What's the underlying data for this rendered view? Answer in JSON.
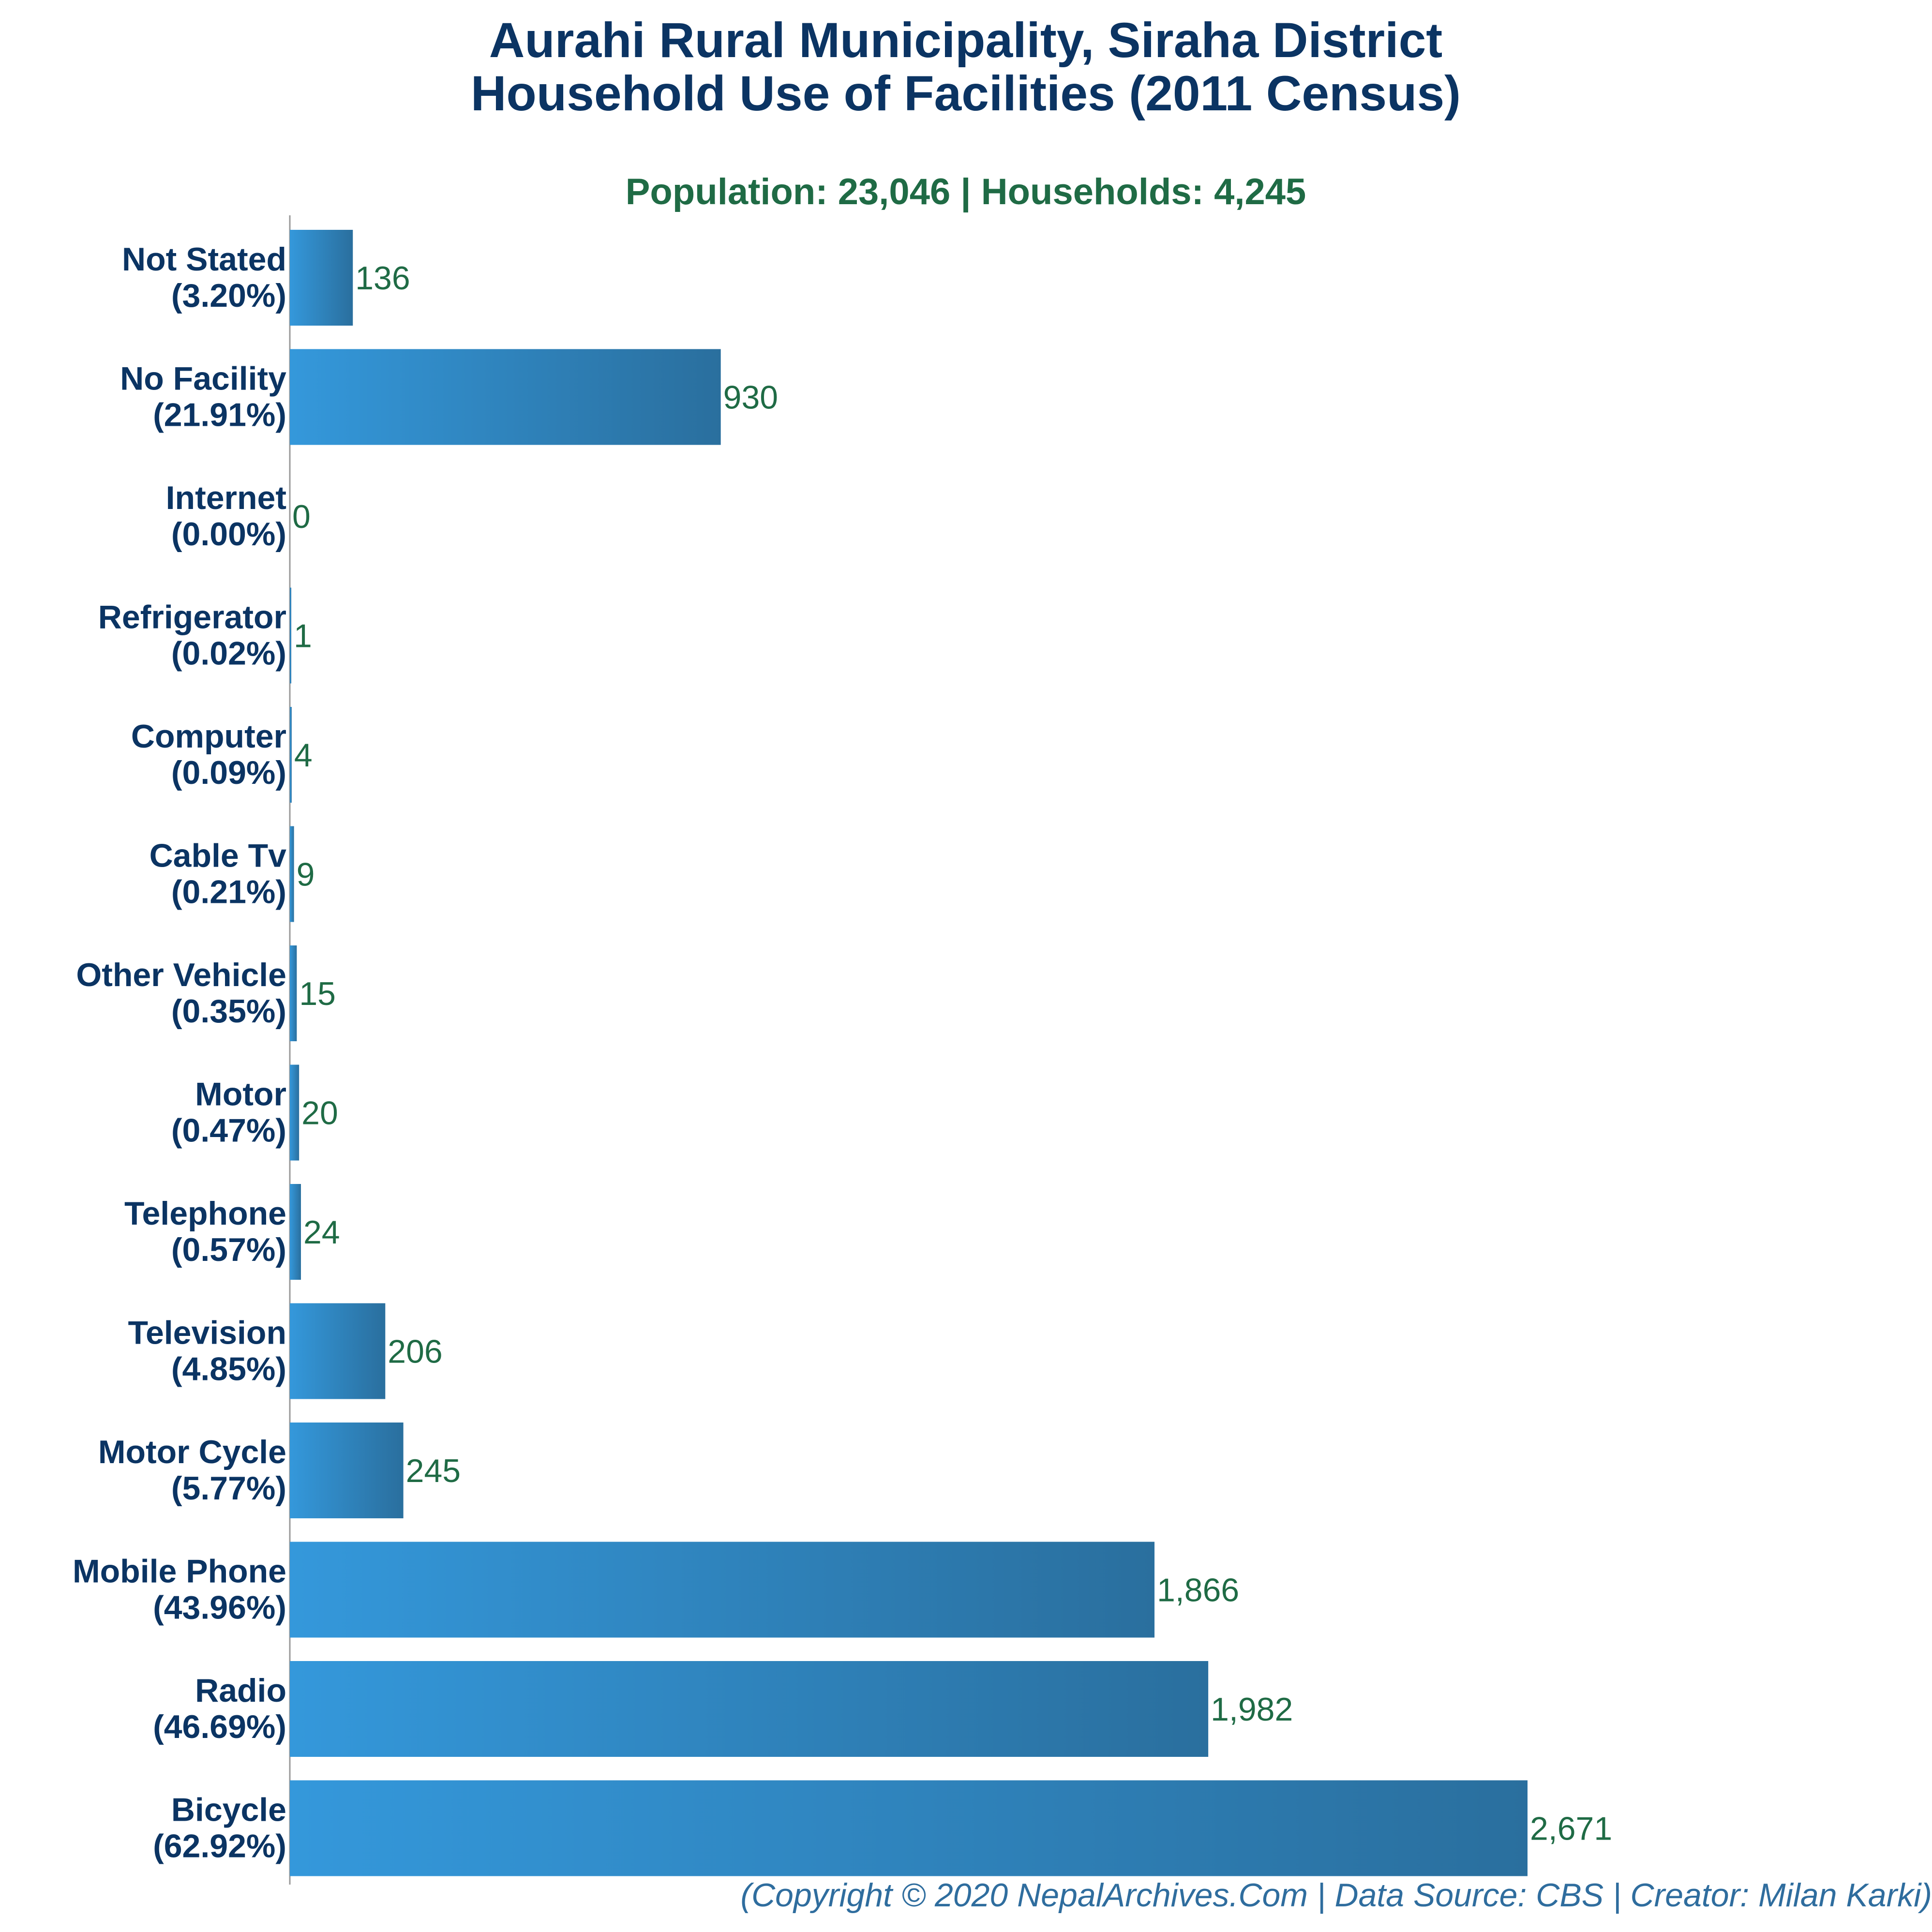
{
  "colors": {
    "bar_start": "#3498db",
    "bar_end": "#2a6f9e",
    "title": "#0b3463",
    "subtitle": "#1f6b45",
    "value_label": "#1f6b45",
    "footer": "#2f6d9e",
    "axis": "#999999"
  },
  "chart_data": {
    "type": "bar",
    "orientation": "horizontal",
    "title_line1": "Aurahi Rural Municipality, Siraha District",
    "title_line2": "Household Use of Facilities (2011 Census)",
    "subtitle": "Population: 23,046 | Households: 4,245",
    "footer": "(Copyright © 2020 NepalArchives.Com | Data Source: CBS | Creator: Milan Karki)",
    "categories": [
      "Not Stated",
      "No Facility",
      "Internet",
      "Refrigerator",
      "Computer",
      "Cable Tv",
      "Other Vehicle",
      "Motor",
      "Telephone",
      "Television",
      "Motor Cycle",
      "Mobile Phone",
      "Radio",
      "Bicycle"
    ],
    "percentages": [
      "(3.20%)",
      "(21.91%)",
      "(0.00%)",
      "(0.02%)",
      "(0.09%)",
      "(0.21%)",
      "(0.35%)",
      "(0.47%)",
      "(0.57%)",
      "(4.85%)",
      "(5.77%)",
      "(43.96%)",
      "(46.69%)",
      "(62.92%)"
    ],
    "values": [
      136,
      930,
      0,
      1,
      4,
      9,
      15,
      20,
      24,
      206,
      245,
      1866,
      1982,
      2671
    ],
    "value_labels": [
      "136",
      "930",
      "0",
      "1",
      "4",
      "9",
      "15",
      "20",
      "24",
      "206",
      "245",
      "1,866",
      "1,982",
      "2,671"
    ],
    "xlim": [
      0,
      3050
    ],
    "grid": false,
    "legend": "none"
  }
}
